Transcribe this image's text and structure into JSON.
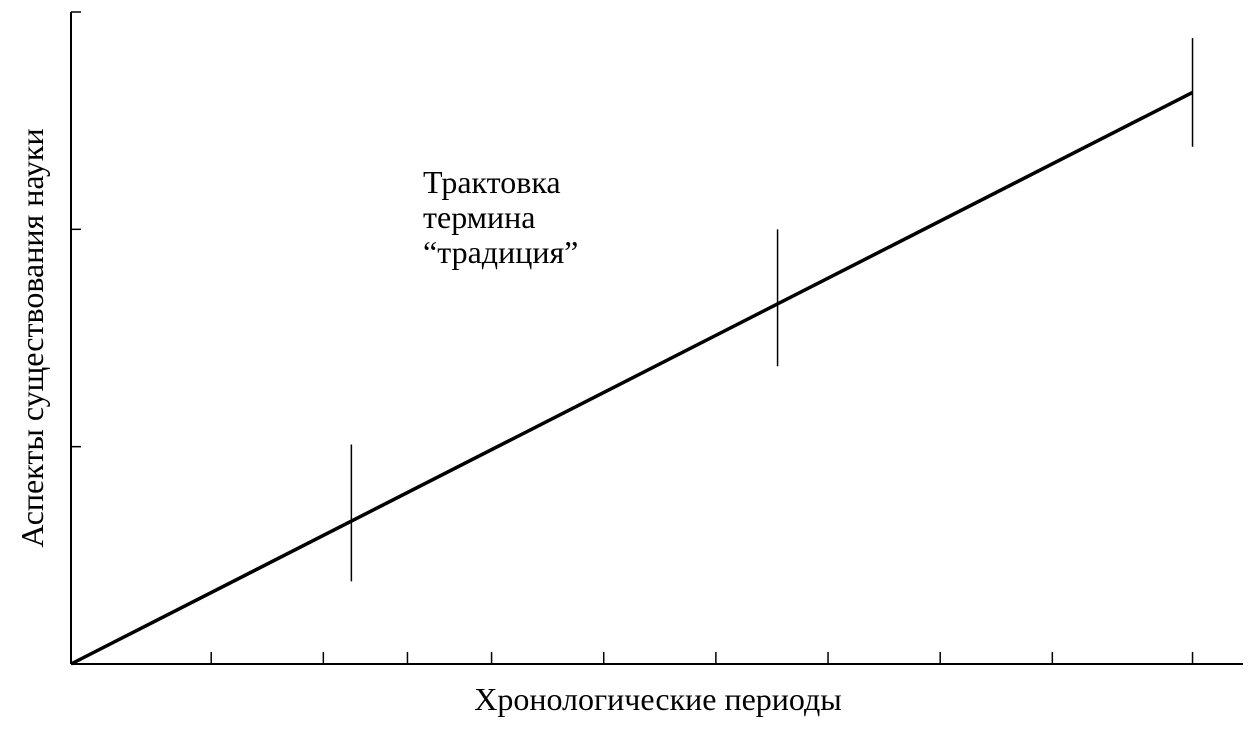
{
  "chart_data": {
    "type": "line",
    "title": "",
    "xlabel": "Хронологические периоды",
    "ylabel": "Аспекты существования науки",
    "annotation_lines": [
      "Трактовка",
      "термина",
      "“традиция”"
    ],
    "x_ticks": [
      0,
      1.25,
      2.25,
      3,
      3.75,
      4.75,
      5.75,
      6.75,
      7.75,
      8.75,
      10
    ],
    "y_ticks": [
      0,
      1,
      2,
      3
    ],
    "xlim": [
      0,
      10.45
    ],
    "ylim": [
      0,
      3
    ],
    "series": [
      {
        "name": "",
        "x": [
          0,
          10
        ],
        "y": [
          0,
          2.63
        ]
      }
    ],
    "markers": [
      {
        "x": 2.5,
        "y_range": [
          0.38,
          1.01
        ]
      },
      {
        "x": 6.3,
        "y_range": [
          1.37,
          2.0
        ]
      },
      {
        "x": 10.0,
        "y_range": [
          2.38,
          2.88
        ]
      }
    ],
    "grid": false,
    "legend": "none"
  }
}
